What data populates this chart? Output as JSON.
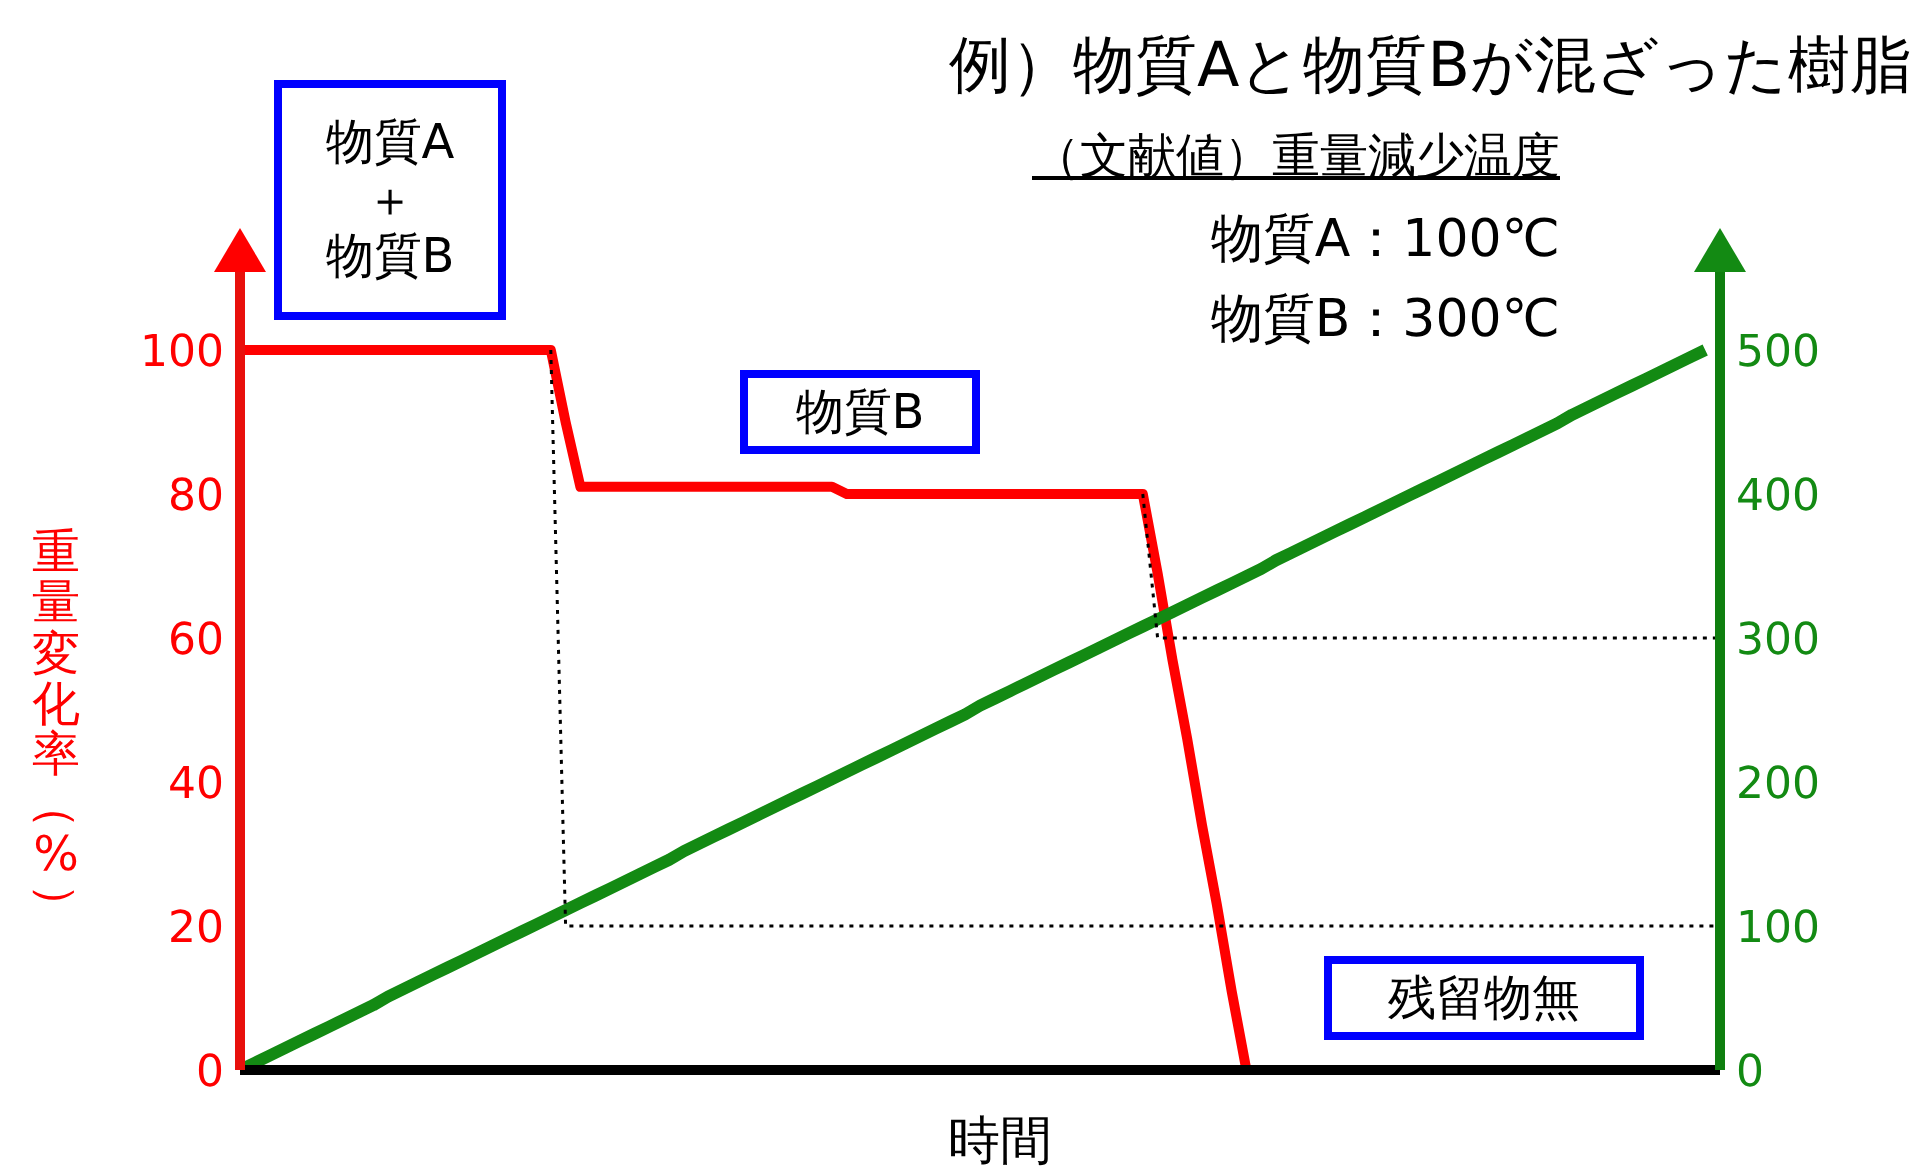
{
  "chart_data": {
    "type": "line",
    "title": "例）物質Aと物質Bが混ざった樹脂",
    "xlabel": "時間",
    "ylabel": "重量変化率（%）",
    "annotations": [
      "（文献値）重量減少温度",
      "物質A：100℃",
      "物質B：300℃",
      "物質A＋物質B",
      "物質B",
      "残留物無"
    ],
    "categories": [
      null,
      null,
      null,
      null,
      null,
      null,
      null,
      null,
      null,
      null,
      null,
      null,
      null,
      null,
      null,
      null,
      null,
      null,
      null,
      null,
      null,
      null,
      null,
      null,
      null,
      null,
      null,
      null,
      null,
      null,
      null,
      null,
      null,
      null,
      null,
      null,
      null,
      null,
      null,
      null,
      null,
      null,
      null,
      null,
      null,
      null,
      null,
      null,
      null,
      null,
      null,
      null,
      null,
      null,
      null,
      null,
      null,
      null,
      null,
      null,
      null,
      null,
      null,
      null,
      null,
      null,
      null,
      null,
      null,
      null,
      null,
      null,
      null,
      null,
      null,
      null,
      null,
      null,
      null,
      null,
      null,
      null,
      null,
      null,
      null,
      null,
      null,
      null,
      null,
      null,
      null,
      null,
      null,
      null,
      null,
      null,
      null,
      null,
      null,
      null,
      null
    ],
    "ylim": [
      0,
      115
    ],
    "yticks": [
      0,
      20,
      40,
      60,
      80,
      100
    ],
    "y2lim": [
      0,
      575
    ],
    "y2ticks": [
      0,
      100,
      200,
      300,
      400,
      500
    ],
    "tick_labels": "y",
    "grid": false,
    "series": [
      {
        "color": "#ff0000",
        "values": [
          100,
          100,
          100,
          100,
          100,
          100,
          100,
          100,
          100,
          100,
          100,
          100,
          100,
          100,
          100,
          100,
          100,
          100,
          100,
          100,
          100,
          100,
          90,
          81,
          81,
          81,
          81,
          81,
          81,
          81,
          81,
          81,
          81,
          81,
          81,
          81,
          81,
          81,
          81,
          81,
          81,
          80,
          80,
          80,
          80,
          80,
          80,
          80,
          80,
          80,
          80,
          80,
          80,
          80,
          80,
          80,
          80,
          80,
          80,
          80,
          80,
          80,
          69,
          57,
          46,
          34,
          23,
          11,
          0,
          null,
          null,
          null,
          null,
          null,
          null,
          null,
          null,
          null,
          null,
          null,
          null,
          null,
          null,
          null,
          null,
          null,
          null,
          null,
          null,
          null,
          null,
          null,
          null,
          null,
          null,
          null,
          null,
          null,
          null,
          null,
          null
        ]
      },
      {
        "color": "#138a13",
        "axis": "y2",
        "values": [
          0,
          5,
          10,
          15,
          20,
          25,
          30,
          35,
          40,
          45,
          51,
          56,
          61,
          66,
          71,
          76,
          81,
          86,
          91,
          96,
          101,
          106,
          111,
          116,
          121,
          126,
          131,
          136,
          141,
          146,
          152,
          157,
          162,
          167,
          172,
          177,
          182,
          187,
          192,
          197,
          202,
          207,
          212,
          217,
          222,
          227,
          232,
          237,
          242,
          247,
          253,
          258,
          263,
          268,
          273,
          278,
          283,
          288,
          293,
          298,
          303,
          308,
          313,
          318,
          323,
          328,
          333,
          338,
          343,
          348,
          354,
          359,
          364,
          369,
          374,
          379,
          384,
          389,
          394,
          399,
          404,
          409,
          414,
          419,
          424,
          429,
          434,
          439,
          444,
          449,
          455,
          460,
          465,
          470,
          475,
          480,
          485,
          490,
          495,
          500,
          null
        ]
      },
      {
        "color": "#000000",
        "line_style": "dotted",
        "values": [
          null,
          null,
          null,
          null,
          null,
          null,
          null,
          null,
          null,
          null,
          null,
          null,
          null,
          null,
          null,
          null,
          null,
          null,
          null,
          null,
          null,
          100,
          20,
          20,
          20,
          20,
          20,
          20,
          20,
          20,
          20,
          20,
          20,
          20,
          20,
          20,
          20,
          20,
          20,
          20,
          20,
          20,
          20,
          20,
          20,
          20,
          20,
          20,
          20,
          20,
          20,
          20,
          20,
          20,
          20,
          20,
          20,
          20,
          20,
          20,
          20,
          20,
          20,
          20,
          20,
          20,
          20,
          20,
          20,
          20,
          20,
          20,
          20,
          20,
          20,
          20,
          20,
          20,
          20,
          20,
          20,
          20,
          20,
          20,
          20,
          20,
          20,
          20,
          20,
          20,
          20,
          20,
          20,
          20,
          20,
          20,
          20,
          20,
          20,
          20,
          20
        ]
      },
      {
        "color": "#000000",
        "line_style": "dotted",
        "values": [
          null,
          null,
          null,
          null,
          null,
          null,
          null,
          null,
          null,
          null,
          null,
          null,
          null,
          null,
          null,
          null,
          null,
          null,
          null,
          null,
          null,
          null,
          null,
          null,
          null,
          null,
          null,
          null,
          null,
          null,
          null,
          null,
          null,
          null,
          null,
          null,
          null,
          null,
          null,
          null,
          null,
          null,
          null,
          null,
          null,
          null,
          null,
          null,
          null,
          null,
          null,
          null,
          null,
          null,
          null,
          null,
          null,
          null,
          null,
          null,
          null,
          80,
          60,
          60,
          60,
          60,
          60,
          60,
          60,
          60,
          60,
          60,
          60,
          60,
          60,
          60,
          60,
          60,
          60,
          60,
          60,
          60,
          60,
          60,
          60,
          60,
          60,
          60,
          60,
          60,
          60,
          60,
          60,
          60,
          60,
          60,
          60,
          60,
          60,
          60,
          60
        ]
      }
    ]
  }
}
